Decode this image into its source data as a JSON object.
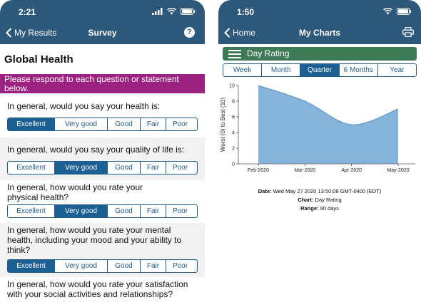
{
  "left_screen": {
    "status_time": "2:21",
    "nav": {
      "back_label": "My Results",
      "title": "Survey",
      "help_label": "?"
    },
    "survey_title": "Global Health",
    "instructions": "Please respond to each question or statement below.",
    "options": [
      "Excellent",
      "Very good",
      "Good",
      "Fair",
      "Poor"
    ],
    "questions": [
      {
        "text": "In general, would you say your health is:",
        "selected": 0
      },
      {
        "text": "In general, would you say your quality of life is:",
        "selected": 1
      },
      {
        "text": "In general, how would you rate your physical health?",
        "selected": 1
      },
      {
        "text": "In general, how would you rate your mental health, including your mood and your ability to think?",
        "selected": 0
      },
      {
        "text": "In general, how would you rate your satisfaction with your social activities and relationships?",
        "selected": -1
      }
    ]
  },
  "right_screen": {
    "status_time": "1:50",
    "nav": {
      "back_label": "Home",
      "title": "My Charts"
    },
    "chart_title_bar": "Day Rating",
    "ranges": [
      "Week",
      "Month",
      "Quarter",
      "6 Months",
      "Year"
    ],
    "selected_range": 2,
    "info": {
      "date_label": "Date:",
      "date_value": "Wed May 27 2020 13:50:08 GMT-0400 (EDT)",
      "chart_label": "Chart:",
      "chart_value": "Day Rating",
      "range_label": "Range:",
      "range_value": "90 days"
    },
    "accent_color": "#3d7a55",
    "fill_color": "#86b4dd"
  },
  "chart_data": {
    "type": "area",
    "x": [
      "Feb-2020",
      "Mar-2020",
      "Apr-2020",
      "May-2020"
    ],
    "values": [
      10,
      8,
      5,
      7
    ],
    "ylabel": "Worst (0) to Best (10)",
    "yticks": [
      0,
      2,
      4,
      6,
      8,
      10
    ],
    "ylim": [
      0,
      10
    ],
    "grid": false
  }
}
